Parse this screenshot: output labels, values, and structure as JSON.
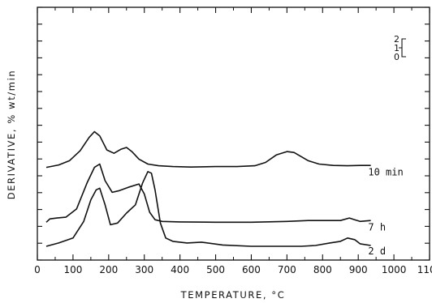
{
  "chart_data": {
    "type": "line",
    "title": "",
    "xlabel": "TEMPERATURE,  °C",
    "ylabel": "DERIVATIVE,  % wt/min",
    "xlim": [
      0,
      1100
    ],
    "x_ticks": [
      0,
      100,
      200,
      300,
      400,
      500,
      600,
      700,
      800,
      900,
      1000,
      1100
    ],
    "y_tick_count": 15,
    "grid": false,
    "legend": "none",
    "scale_bar": {
      "labels": [
        "2",
        "1",
        "0"
      ],
      "values": [
        2,
        1,
        0
      ]
    },
    "series": [
      {
        "name": "10 min",
        "label_at_x": 905,
        "offset": 4.75,
        "x": [
          25,
          60,
          90,
          120,
          145,
          160,
          175,
          195,
          215,
          235,
          250,
          265,
          285,
          310,
          340,
          380,
          430,
          500,
          560,
          610,
          640,
          670,
          700,
          720,
          740,
          760,
          790,
          830,
          870,
          905,
          935
        ],
        "y": [
          0.0,
          0.15,
          0.4,
          1.0,
          1.8,
          2.15,
          1.9,
          1.05,
          0.85,
          1.1,
          1.2,
          0.95,
          0.5,
          0.2,
          0.1,
          0.05,
          0.02,
          0.05,
          0.05,
          0.1,
          0.3,
          0.75,
          0.95,
          0.9,
          0.65,
          0.4,
          0.2,
          0.12,
          0.1,
          0.12,
          0.12
        ]
      },
      {
        "name": "7 h",
        "label_at_x": 905,
        "offset": 1.45,
        "x": [
          25,
          35,
          55,
          80,
          110,
          140,
          160,
          175,
          190,
          210,
          230,
          255,
          285,
          300,
          315,
          330,
          350,
          400,
          500,
          600,
          700,
          760,
          800,
          850,
          875,
          890,
          905,
          935
        ],
        "y": [
          0.0,
          0.2,
          0.25,
          0.3,
          0.8,
          2.4,
          3.3,
          3.5,
          2.5,
          1.8,
          1.9,
          2.1,
          2.3,
          1.7,
          0.6,
          0.15,
          0.05,
          0.02,
          0.0,
          0.0,
          0.05,
          0.1,
          0.1,
          0.1,
          0.25,
          0.15,
          0.05,
          0.1
        ]
      },
      {
        "name": "2 d",
        "label_at_x": 905,
        "offset": 0.0,
        "x": [
          25,
          60,
          100,
          130,
          150,
          165,
          175,
          190,
          205,
          225,
          250,
          275,
          295,
          310,
          320,
          330,
          345,
          360,
          380,
          420,
          460,
          520,
          600,
          680,
          740,
          780,
          820,
          850,
          870,
          890,
          905,
          935
        ],
        "y": [
          0.0,
          0.2,
          0.5,
          1.5,
          2.8,
          3.4,
          3.5,
          2.5,
          1.3,
          1.4,
          2.0,
          2.5,
          3.8,
          4.5,
          4.4,
          3.4,
          1.4,
          0.5,
          0.3,
          0.2,
          0.25,
          0.08,
          0.0,
          0.0,
          0.0,
          0.05,
          0.2,
          0.3,
          0.5,
          0.4,
          0.15,
          0.05
        ]
      }
    ]
  }
}
